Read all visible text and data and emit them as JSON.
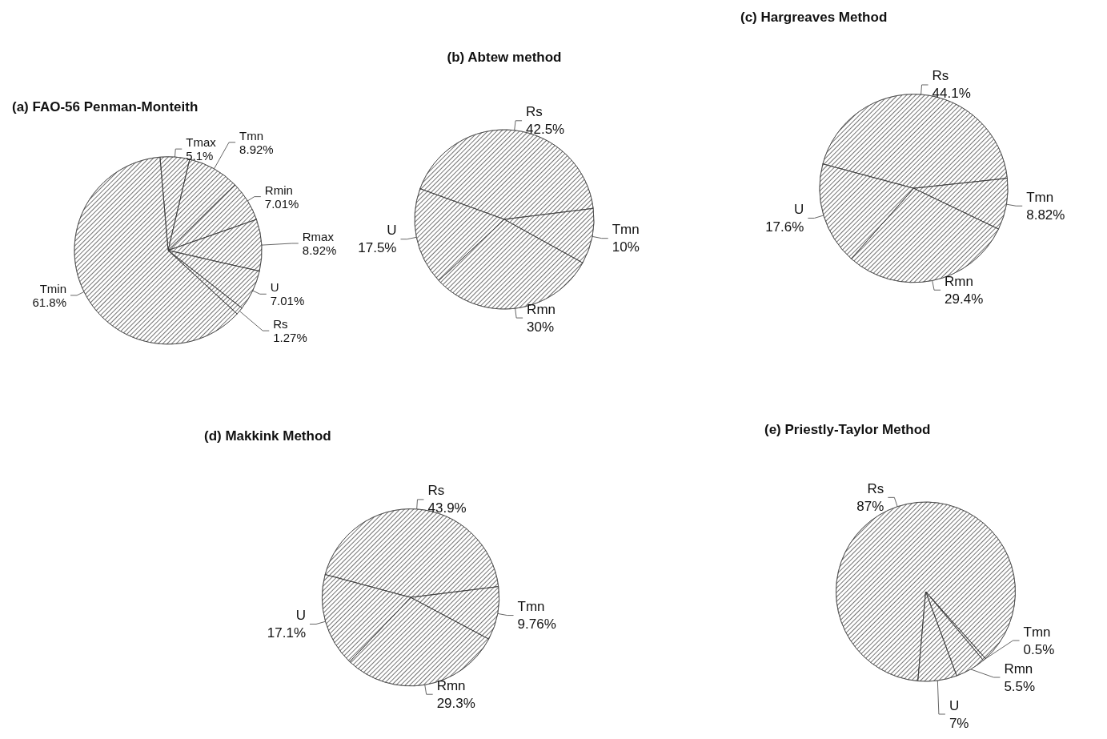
{
  "chart_data": [
    {
      "type": "pie",
      "title": "(a) FAO-56 Penman-Monteith",
      "categories": [
        "Tmax",
        "Tmn",
        "Rmin",
        "Rmax",
        "U",
        "Rs",
        "Tmin"
      ],
      "values": [
        5.1,
        8.92,
        7.01,
        8.92,
        7.01,
        1.27,
        61.8
      ],
      "value_labels": [
        "5.1%",
        "8.92%",
        "7.01%",
        "8.92%",
        "7.01%",
        "1.27%",
        "61.8%"
      ],
      "colors": [
        "#ffffff",
        "#ffffff",
        "#ffffff",
        "#ffffff",
        "#ffffff",
        "#ffffff",
        "#ffffff"
      ],
      "legend": false
    },
    {
      "type": "pie",
      "title": "(b) Abtew method",
      "categories": [
        "Rs",
        "Tmn",
        "Rmn",
        "U"
      ],
      "values": [
        42.5,
        10,
        30,
        17.5
      ],
      "value_labels": [
        "42.5%",
        "10%",
        "30%",
        "17.5%"
      ],
      "colors": [
        "#ffffff",
        "#ffffff",
        "#ffffff",
        "#ffffff"
      ],
      "legend": false
    },
    {
      "type": "pie",
      "title": "(c) Hargreaves Method",
      "categories": [
        "Rs",
        "Tmn",
        "Rmn",
        "U"
      ],
      "values": [
        44.1,
        8.82,
        29.4,
        17.6
      ],
      "value_labels": [
        "44.1%",
        "8.82%",
        "29.4%",
        "17.6%"
      ],
      "colors": [
        "#ffffff",
        "#ffffff",
        "#ffffff",
        "#ffffff"
      ],
      "legend": false
    },
    {
      "type": "pie",
      "title": "(d) Makkink Method",
      "categories": [
        "Rs",
        "Tmn",
        "Rmn",
        "U"
      ],
      "values": [
        43.9,
        9.76,
        29.3,
        17.1
      ],
      "value_labels": [
        "43.9%",
        "9.76%",
        "29.3%",
        "17.1%"
      ],
      "colors": [
        "#ffffff",
        "#ffffff",
        "#ffffff",
        "#ffffff"
      ],
      "legend": false
    },
    {
      "type": "pie",
      "title": "(e) Priestly-Taylor Method",
      "categories": [
        "Rs",
        "Tmn",
        "Rmn",
        "U"
      ],
      "values": [
        87,
        0.5,
        5.5,
        7
      ],
      "value_labels": [
        "87%",
        "0.5%",
        "5.5%",
        "7%"
      ],
      "colors": [
        "#ffffff",
        "#ffffff",
        "#ffffff",
        "#ffffff"
      ],
      "legend": false
    }
  ]
}
